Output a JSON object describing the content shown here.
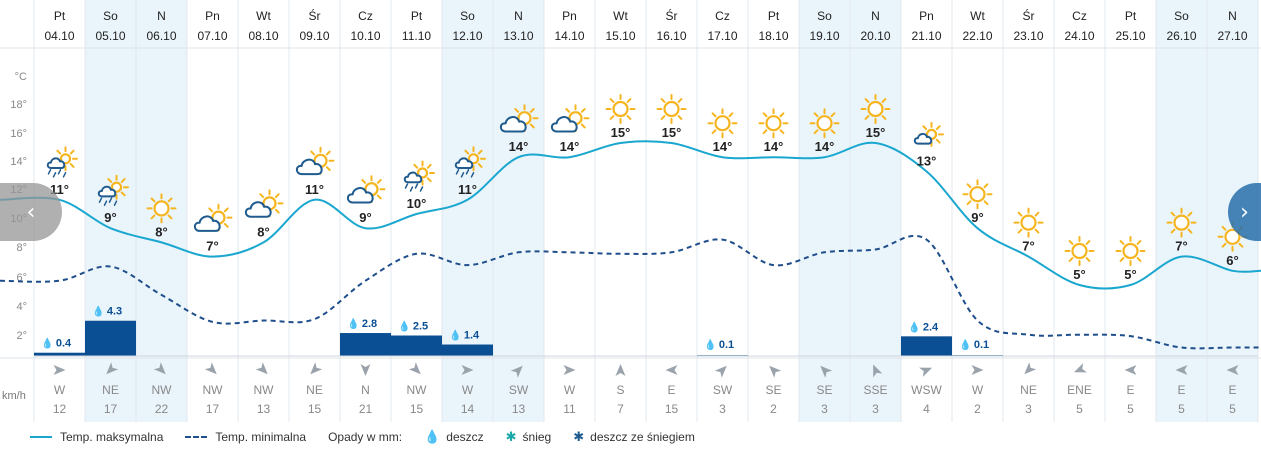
{
  "units": {
    "temp": "°C",
    "wind": "km/h"
  },
  "y_axis_ticks": [
    "°C",
    "18°",
    "16°",
    "14°",
    "12°",
    "10°",
    "8°",
    "6°",
    "4°",
    "2°"
  ],
  "days": [
    {
      "dow": "Pt",
      "date": "04.10",
      "max": 11,
      "min": 5.3,
      "icon": "sun-cloud-rain",
      "precip": 0.4,
      "precip_label": "0.4",
      "wind_dir": "W",
      "wind": 12,
      "weekend": false
    },
    {
      "dow": "So",
      "date": "05.10",
      "max": 9,
      "min": 6.3,
      "icon": "sun-cloud-rain",
      "precip": 4.3,
      "precip_label": "4.3",
      "wind_dir": "NE",
      "wind": 17,
      "weekend": true
    },
    {
      "dow": "N",
      "date": "06.10",
      "max": 8,
      "min": 4.3,
      "icon": "sun",
      "precip": 0,
      "precip_label": "",
      "wind_dir": "NW",
      "wind": 22,
      "weekend": true
    },
    {
      "dow": "Pn",
      "date": "07.10",
      "max": 7,
      "min": 2.4,
      "icon": "sun-cloud",
      "precip": 0,
      "precip_label": "",
      "wind_dir": "NW",
      "wind": 17,
      "weekend": false
    },
    {
      "dow": "Wt",
      "date": "08.10",
      "max": 8,
      "min": 2.5,
      "icon": "sun-cloud",
      "precip": 0,
      "precip_label": "",
      "wind_dir": "NW",
      "wind": 13,
      "weekend": false
    },
    {
      "dow": "Śr",
      "date": "09.10",
      "max": 11,
      "min": 2.6,
      "icon": "sun-cloud",
      "precip": 0,
      "precip_label": "",
      "wind_dir": "NE",
      "wind": 15,
      "weekend": false
    },
    {
      "dow": "Cz",
      "date": "10.10",
      "max": 9,
      "min": 5.3,
      "icon": "sun-cloud",
      "precip": 2.8,
      "precip_label": "2.8",
      "wind_dir": "N",
      "wind": 21,
      "weekend": false
    },
    {
      "dow": "Pt",
      "date": "11.10",
      "max": 10,
      "min": 7.2,
      "icon": "sun-cloud-rain",
      "precip": 2.5,
      "precip_label": "2.5",
      "wind_dir": "NW",
      "wind": 15,
      "weekend": false
    },
    {
      "dow": "So",
      "date": "12.10",
      "max": 11,
      "min": 6.4,
      "icon": "sun-cloud-rain",
      "precip": 1.4,
      "precip_label": "1.4",
      "wind_dir": "W",
      "wind": 14,
      "weekend": true
    },
    {
      "dow": "N",
      "date": "13.10",
      "max": 14,
      "min": 7.3,
      "icon": "sun-cloud",
      "precip": 0,
      "precip_label": "",
      "wind_dir": "SW",
      "wind": 13,
      "weekend": true
    },
    {
      "dow": "Pn",
      "date": "14.10",
      "max": 14,
      "min": 7.3,
      "icon": "sun-cloud",
      "precip": 0,
      "precip_label": "",
      "wind_dir": "W",
      "wind": 11,
      "weekend": false
    },
    {
      "dow": "Wt",
      "date": "15.10",
      "max": 15,
      "min": 7.2,
      "icon": "sun",
      "precip": 0,
      "precip_label": "",
      "wind_dir": "S",
      "wind": 7,
      "weekend": false
    },
    {
      "dow": "Śr",
      "date": "16.10",
      "max": 15,
      "min": 7.3,
      "icon": "sun",
      "precip": 0,
      "precip_label": "",
      "wind_dir": "E",
      "wind": 15,
      "weekend": false
    },
    {
      "dow": "Cz",
      "date": "17.10",
      "max": 14,
      "min": 8.2,
      "icon": "sun",
      "precip": 0.1,
      "precip_label": "0.1",
      "wind_dir": "SW",
      "wind": 3,
      "weekend": false
    },
    {
      "dow": "Pt",
      "date": "18.10",
      "max": 14,
      "min": 6.4,
      "icon": "sun",
      "precip": 0,
      "precip_label": "",
      "wind_dir": "SE",
      "wind": 2,
      "weekend": false
    },
    {
      "dow": "So",
      "date": "19.10",
      "max": 14,
      "min": 7.3,
      "icon": "sun",
      "precip": 0,
      "precip_label": "",
      "wind_dir": "SE",
      "wind": 3,
      "weekend": true
    },
    {
      "dow": "N",
      "date": "20.10",
      "max": 15,
      "min": 7.5,
      "icon": "sun",
      "precip": 0,
      "precip_label": "",
      "wind_dir": "SSE",
      "wind": 3,
      "weekend": true
    },
    {
      "dow": "Pn",
      "date": "21.10",
      "max": 13,
      "min": 8.2,
      "icon": "cloud-sun",
      "precip": 2.4,
      "precip_label": "2.4",
      "wind_dir": "WSW",
      "wind": 4,
      "weekend": false
    },
    {
      "dow": "Wt",
      "date": "22.10",
      "max": 9,
      "min": 2.5,
      "icon": "sun",
      "precip": 0.1,
      "precip_label": "0.1",
      "wind_dir": "W",
      "wind": 2,
      "weekend": false
    },
    {
      "dow": "Śr",
      "date": "23.10",
      "max": 7,
      "min": 1.5,
      "icon": "sun",
      "precip": 0,
      "precip_label": "",
      "wind_dir": "NE",
      "wind": 3,
      "weekend": false
    },
    {
      "dow": "Cz",
      "date": "24.10",
      "max": 5,
      "min": 1.5,
      "icon": "sun",
      "precip": 0,
      "precip_label": "",
      "wind_dir": "ENE",
      "wind": 5,
      "weekend": false
    },
    {
      "dow": "Pt",
      "date": "25.10",
      "max": 5,
      "min": 1.4,
      "icon": "sun",
      "precip": 0,
      "precip_label": "",
      "wind_dir": "E",
      "wind": 5,
      "weekend": false
    },
    {
      "dow": "So",
      "date": "26.10",
      "max": 7,
      "min": 0.6,
      "icon": "sun",
      "precip": 0,
      "precip_label": "",
      "wind_dir": "E",
      "wind": 5,
      "weekend": true
    },
    {
      "dow": "N",
      "date": "27.10",
      "max": 6,
      "min": 0.6,
      "icon": "sun",
      "precip": 0,
      "precip_label": "",
      "wind_dir": "E",
      "wind": 5,
      "weekend": true
    }
  ],
  "wind_bearings": {
    "N": 0,
    "NNE": 22.5,
    "NE": 45,
    "ENE": 67.5,
    "E": 90,
    "ESE": 112.5,
    "SE": 135,
    "SSE": 157.5,
    "S": 180,
    "SSW": 202.5,
    "SW": 225,
    "WSW": 247.5,
    "W": 270,
    "WNW": 292.5,
    "NW": 315,
    "NNW": 337.5
  },
  "legend": {
    "max_label": "Temp. maksymalna",
    "min_label": "Temp. minimalna",
    "precip_title": "Opady w mm:",
    "rain_label": "deszcz",
    "snow_label": "śnieg",
    "sleet_label": "deszcz ze śniegiem"
  },
  "nav": {
    "prev_icon": "‹",
    "next_icon": "›"
  },
  "colors": {
    "max_line": "#1aa7cf",
    "min_line": "#1f4e8c",
    "precip_bar": "#0a4f94",
    "precip_text": "#0a4f94",
    "weekend_bg": "#eaf4fb",
    "grid": "#e3e8ec",
    "sun": "#f6b51e",
    "cloud": "#1f5b8e",
    "snow": "#1aa7a7"
  }
}
